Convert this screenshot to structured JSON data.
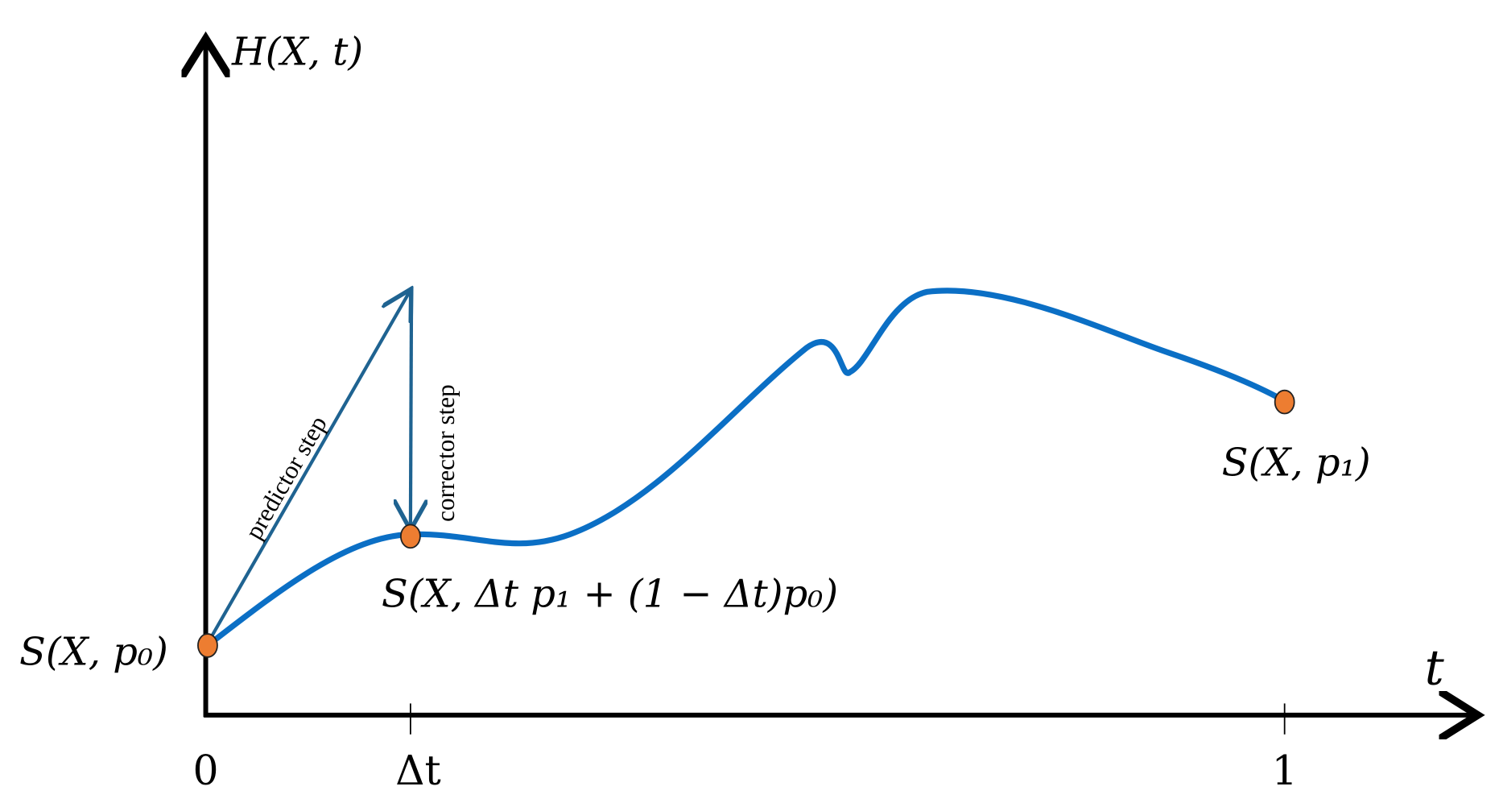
{
  "axes": {
    "y_label": "H(X, t)",
    "x_label": "t",
    "ticks": [
      "0",
      "Δt",
      "1"
    ]
  },
  "arrows": {
    "predictor": "predictor step",
    "corrector": "corrector step"
  },
  "points": {
    "start": "S(X, p₀)",
    "middle": "S(X, Δt p₁ + (1 − Δt)p₀)",
    "end": "S(X, p₁)"
  }
}
